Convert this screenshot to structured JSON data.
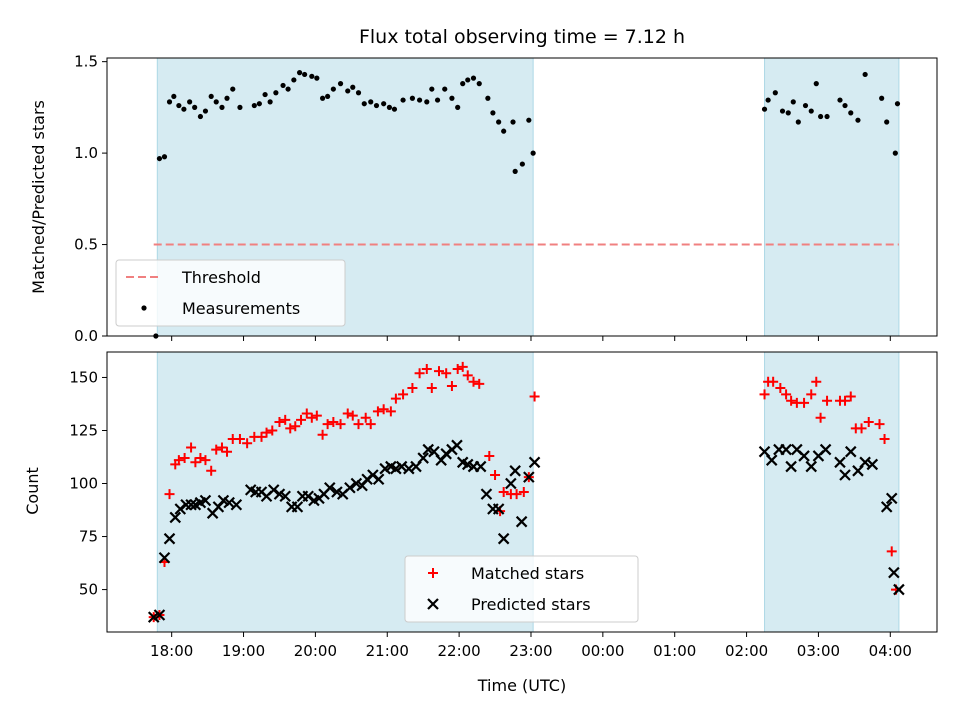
{
  "chart_data": {
    "title": "Flux total observing time = 7.12 h",
    "xlabel": "Time (UTC)",
    "x_unit": "hours (UTC, continuing past midnight)",
    "xlim": [
      17.1,
      28.65
    ],
    "x_ticks": [
      {
        "value": 18,
        "label": "18:00"
      },
      {
        "value": 19,
        "label": "19:00"
      },
      {
        "value": 20,
        "label": "20:00"
      },
      {
        "value": 21,
        "label": "21:00"
      },
      {
        "value": 22,
        "label": "22:00"
      },
      {
        "value": 23,
        "label": "23:00"
      },
      {
        "value": 24,
        "label": "00:00"
      },
      {
        "value": 25,
        "label": "01:00"
      },
      {
        "value": 26,
        "label": "02:00"
      },
      {
        "value": 27,
        "label": "03:00"
      },
      {
        "value": 28,
        "label": "04:00"
      }
    ],
    "shaded_intervals": [
      [
        17.8,
        23.03
      ],
      [
        26.25,
        28.12
      ]
    ],
    "shade_color": "#add8e6",
    "panels": [
      {
        "type": "scatter",
        "ylabel": "Matched/Predicted stars",
        "ylim": [
          0,
          1.52
        ],
        "y_ticks": [
          "0.0",
          "0.5",
          "1.0",
          "1.5"
        ],
        "y_tick_values": [
          0,
          0.5,
          1.0,
          1.5
        ],
        "threshold": {
          "value": 0.5,
          "x_range": [
            17.75,
            28.12
          ],
          "color": "#f08080"
        },
        "legend": {
          "position": "lower-left",
          "entries": [
            "Threshold",
            "Measurements"
          ]
        },
        "series": [
          {
            "name": "Measurements",
            "color": "#000000",
            "marker": "dot",
            "x": [
              17.78,
              17.83,
              17.9,
              17.97,
              18.03,
              18.1,
              18.17,
              18.25,
              18.32,
              18.4,
              18.47,
              18.55,
              18.62,
              18.7,
              18.77,
              18.85,
              18.95,
              19.15,
              19.22,
              19.3,
              19.37,
              19.45,
              19.55,
              19.62,
              19.7,
              19.78,
              19.85,
              19.95,
              20.02,
              20.1,
              20.17,
              20.25,
              20.35,
              20.45,
              20.52,
              20.6,
              20.68,
              20.77,
              20.85,
              20.95,
              21.03,
              21.1,
              21.22,
              21.35,
              21.45,
              21.55,
              21.62,
              21.7,
              21.8,
              21.9,
              21.98,
              22.05,
              22.12,
              22.2,
              22.28,
              22.4,
              22.47,
              22.55,
              22.62,
              22.75,
              22.78,
              22.88,
              22.97,
              23.03,
              26.25,
              26.3,
              26.4,
              26.5,
              26.58,
              26.65,
              26.72,
              26.82,
              26.9,
              26.97,
              27.03,
              27.12,
              27.3,
              27.37,
              27.45,
              27.55,
              27.65,
              27.88,
              27.95,
              28.07,
              28.1
            ],
            "y": [
              0.0,
              0.97,
              0.98,
              1.28,
              1.31,
              1.26,
              1.24,
              1.28,
              1.25,
              1.2,
              1.23,
              1.31,
              1.28,
              1.25,
              1.3,
              1.35,
              1.25,
              1.26,
              1.27,
              1.32,
              1.28,
              1.33,
              1.37,
              1.35,
              1.4,
              1.44,
              1.43,
              1.42,
              1.41,
              1.3,
              1.31,
              1.35,
              1.38,
              1.34,
              1.36,
              1.33,
              1.27,
              1.28,
              1.26,
              1.27,
              1.25,
              1.24,
              1.29,
              1.3,
              1.29,
              1.28,
              1.35,
              1.29,
              1.35,
              1.3,
              1.25,
              1.38,
              1.4,
              1.41,
              1.38,
              1.3,
              1.22,
              1.17,
              1.12,
              1.17,
              0.9,
              0.94,
              1.18,
              1.0,
              1.24,
              1.29,
              1.33,
              1.23,
              1.22,
              1.28,
              1.17,
              1.26,
              1.23,
              1.38,
              1.2,
              1.2,
              1.29,
              1.26,
              1.22,
              1.18,
              1.43,
              1.3,
              1.17,
              1.0,
              1.27
            ]
          }
        ]
      },
      {
        "type": "scatter",
        "ylabel": "Count",
        "ylim": [
          30,
          162
        ],
        "y_ticks": [
          "50",
          "75",
          "100",
          "125",
          "150"
        ],
        "y_tick_values": [
          50,
          75,
          100,
          125,
          150
        ],
        "legend": {
          "position": "lower-center",
          "entries": [
            "Matched stars",
            "Predicted stars"
          ]
        },
        "series": [
          {
            "name": "Matched stars",
            "color": "#ff0000",
            "marker": "plus",
            "x": [
              17.75,
              17.83,
              17.9,
              17.97,
              18.05,
              18.1,
              18.18,
              18.27,
              18.33,
              18.4,
              18.47,
              18.55,
              18.62,
              18.7,
              18.77,
              18.85,
              18.95,
              19.05,
              19.15,
              19.25,
              19.32,
              19.4,
              19.5,
              19.58,
              19.65,
              19.72,
              19.8,
              19.88,
              19.95,
              20.02,
              20.1,
              20.17,
              20.25,
              20.35,
              20.45,
              20.52,
              20.6,
              20.7,
              20.77,
              20.87,
              20.95,
              21.05,
              21.12,
              21.22,
              21.35,
              21.45,
              21.55,
              21.62,
              21.72,
              21.82,
              21.9,
              21.98,
              22.05,
              22.12,
              22.2,
              22.28,
              22.42,
              22.5,
              22.57,
              22.62,
              22.72,
              22.8,
              22.9,
              22.97,
              23.05,
              26.25,
              26.3,
              26.37,
              26.47,
              26.55,
              26.62,
              26.7,
              26.8,
              26.9,
              26.97,
              27.03,
              27.12,
              27.3,
              27.37,
              27.45,
              27.52,
              27.6,
              27.7,
              27.85,
              27.92,
              28.02,
              28.08
            ],
            "y": [
              37,
              38,
              63,
              95,
              109,
              111,
              112,
              117,
              110,
              112,
              111,
              106,
              116,
              117,
              115,
              121,
              121,
              119,
              122,
              122,
              124,
              125,
              129,
              130,
              126,
              127,
              130,
              133,
              131,
              132,
              123,
              128,
              129,
              128,
              133,
              132,
              128,
              131,
              128,
              134,
              135,
              134,
              140,
              142,
              145,
              152,
              154,
              145,
              153,
              152,
              146,
              154,
              155,
              151,
              148,
              147,
              113,
              104,
              87,
              96,
              95,
              95,
              96,
              103,
              141,
              142,
              148,
              148,
              145,
              142,
              139,
              138,
              138,
              142,
              148,
              131,
              139,
              139,
              139,
              141,
              126,
              126,
              129,
              128,
              121,
              68,
              50
            ]
          },
          {
            "name": "Predicted stars",
            "color": "#000000",
            "marker": "x",
            "x": [
              17.75,
              17.83,
              17.9,
              17.97,
              18.05,
              18.12,
              18.2,
              18.27,
              18.33,
              18.4,
              18.47,
              18.57,
              18.65,
              18.72,
              18.8,
              18.9,
              19.1,
              19.17,
              19.25,
              19.32,
              19.42,
              19.5,
              19.58,
              19.67,
              19.75,
              19.82,
              19.9,
              19.98,
              20.05,
              20.12,
              20.2,
              20.3,
              20.38,
              20.48,
              20.57,
              20.65,
              20.72,
              20.8,
              20.88,
              20.97,
              21.05,
              21.12,
              21.2,
              21.3,
              21.4,
              21.5,
              21.57,
              21.65,
              21.75,
              21.82,
              21.9,
              21.97,
              22.05,
              22.12,
              22.2,
              22.3,
              22.38,
              22.47,
              22.55,
              22.62,
              22.72,
              22.78,
              22.87,
              22.97,
              23.05,
              26.25,
              26.35,
              26.45,
              26.55,
              26.62,
              26.7,
              26.8,
              26.9,
              27.0,
              27.1,
              27.3,
              27.37,
              27.45,
              27.55,
              27.65,
              27.75,
              27.95,
              28.02,
              28.05,
              28.12
            ],
            "y": [
              37,
              38,
              65,
              74,
              84,
              88,
              90,
              90,
              90,
              91,
              92,
              86,
              89,
              92,
              91,
              90,
              97,
              96,
              96,
              94,
              97,
              95,
              94,
              89,
              89,
              94,
              94,
              92,
              93,
              95,
              98,
              96,
              95,
              98,
              100,
              99,
              102,
              104,
              102,
              107,
              108,
              107,
              108,
              107,
              108,
              112,
              116,
              115,
              111,
              114,
              116,
              118,
              110,
              109,
              108,
              108,
              95,
              88,
              88,
              74,
              100,
              106,
              82,
              103,
              110,
              115,
              111,
              116,
              116,
              108,
              116,
              113,
              108,
              113,
              116,
              110,
              104,
              115,
              106,
              110,
              109,
              89,
              93,
              58,
              50
            ]
          }
        ]
      }
    ]
  }
}
